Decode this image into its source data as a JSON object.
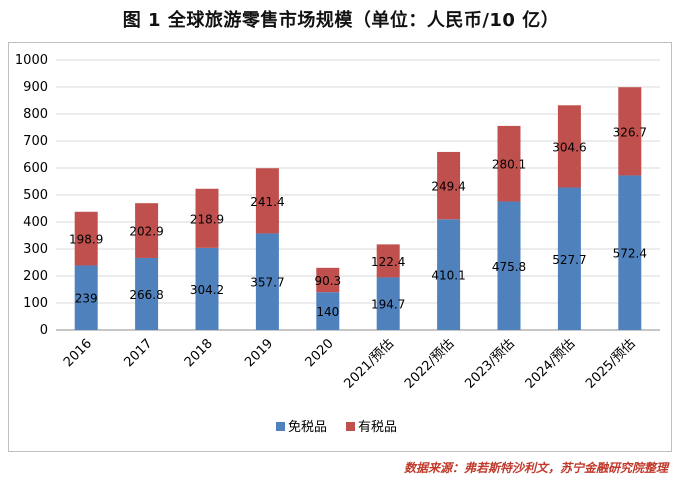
{
  "chart_data": {
    "type": "bar",
    "stacked": true,
    "title": "图 1  全球旅游零售市场规模（单位：人民币/10 亿）",
    "categories": [
      "2016",
      "2017",
      "2018",
      "2019",
      "2020",
      "2021/预估",
      "2022/预估",
      "2023/预估",
      "2024/预估",
      "2025/预估"
    ],
    "series": [
      {
        "name": "免税品",
        "color": "#4f81bd",
        "values": [
          239,
          266.8,
          304.2,
          357.7,
          140,
          194.7,
          410.1,
          475.8,
          527.7,
          572.4
        ]
      },
      {
        "name": "有税品",
        "color": "#c0504d",
        "values": [
          198.9,
          202.9,
          218.9,
          241.4,
          90.3,
          122.4,
          249.4,
          280.1,
          304.6,
          326.7
        ]
      }
    ],
    "ylim": [
      0,
      1000
    ],
    "yticks": [
      0,
      100,
      200,
      300,
      400,
      500,
      600,
      700,
      800,
      900,
      1000
    ],
    "grid": true,
    "legend_position": "bottom"
  },
  "source_note": "数据来源：弗若斯特沙利文，苏宁金融研究院整理"
}
